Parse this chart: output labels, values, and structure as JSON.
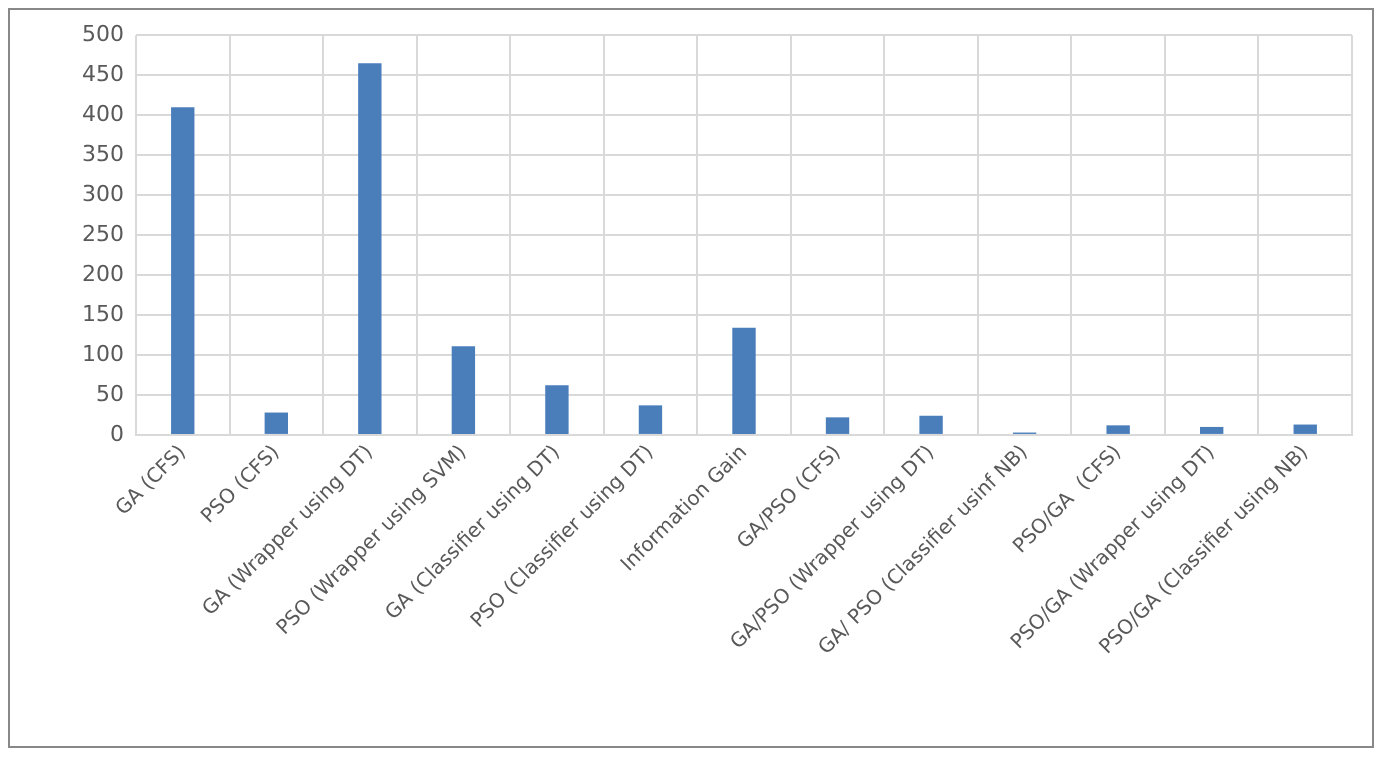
{
  "chart_data": {
    "type": "bar",
    "categories": [
      "GA (CFS)",
      "PSO (CFS)",
      "GA (Wrapper using DT)",
      "PSO (Wrapper using SVM)",
      "GA (Classifier using DT)",
      "PSO (Classifier using DT)",
      "Information Gain",
      "GA/PSO (CFS)",
      "GA/PSO (Wrapper using DT)",
      "GA/ PSO (Classifier usinf NB)",
      "PSO/GA  (CFS)",
      "PSO/GA (Wrapper using DT)",
      "PSO/GA (Classifier using NB)"
    ],
    "values": [
      410,
      28,
      465,
      111,
      62,
      37,
      134,
      22,
      24,
      3,
      12,
      10,
      13
    ],
    "color": "#4a7ebb",
    "ylim": [
      0,
      500
    ],
    "yticks": [
      0,
      50,
      100,
      150,
      200,
      250,
      300,
      350,
      400,
      450,
      500
    ],
    "grid": true,
    "legend": false
  }
}
